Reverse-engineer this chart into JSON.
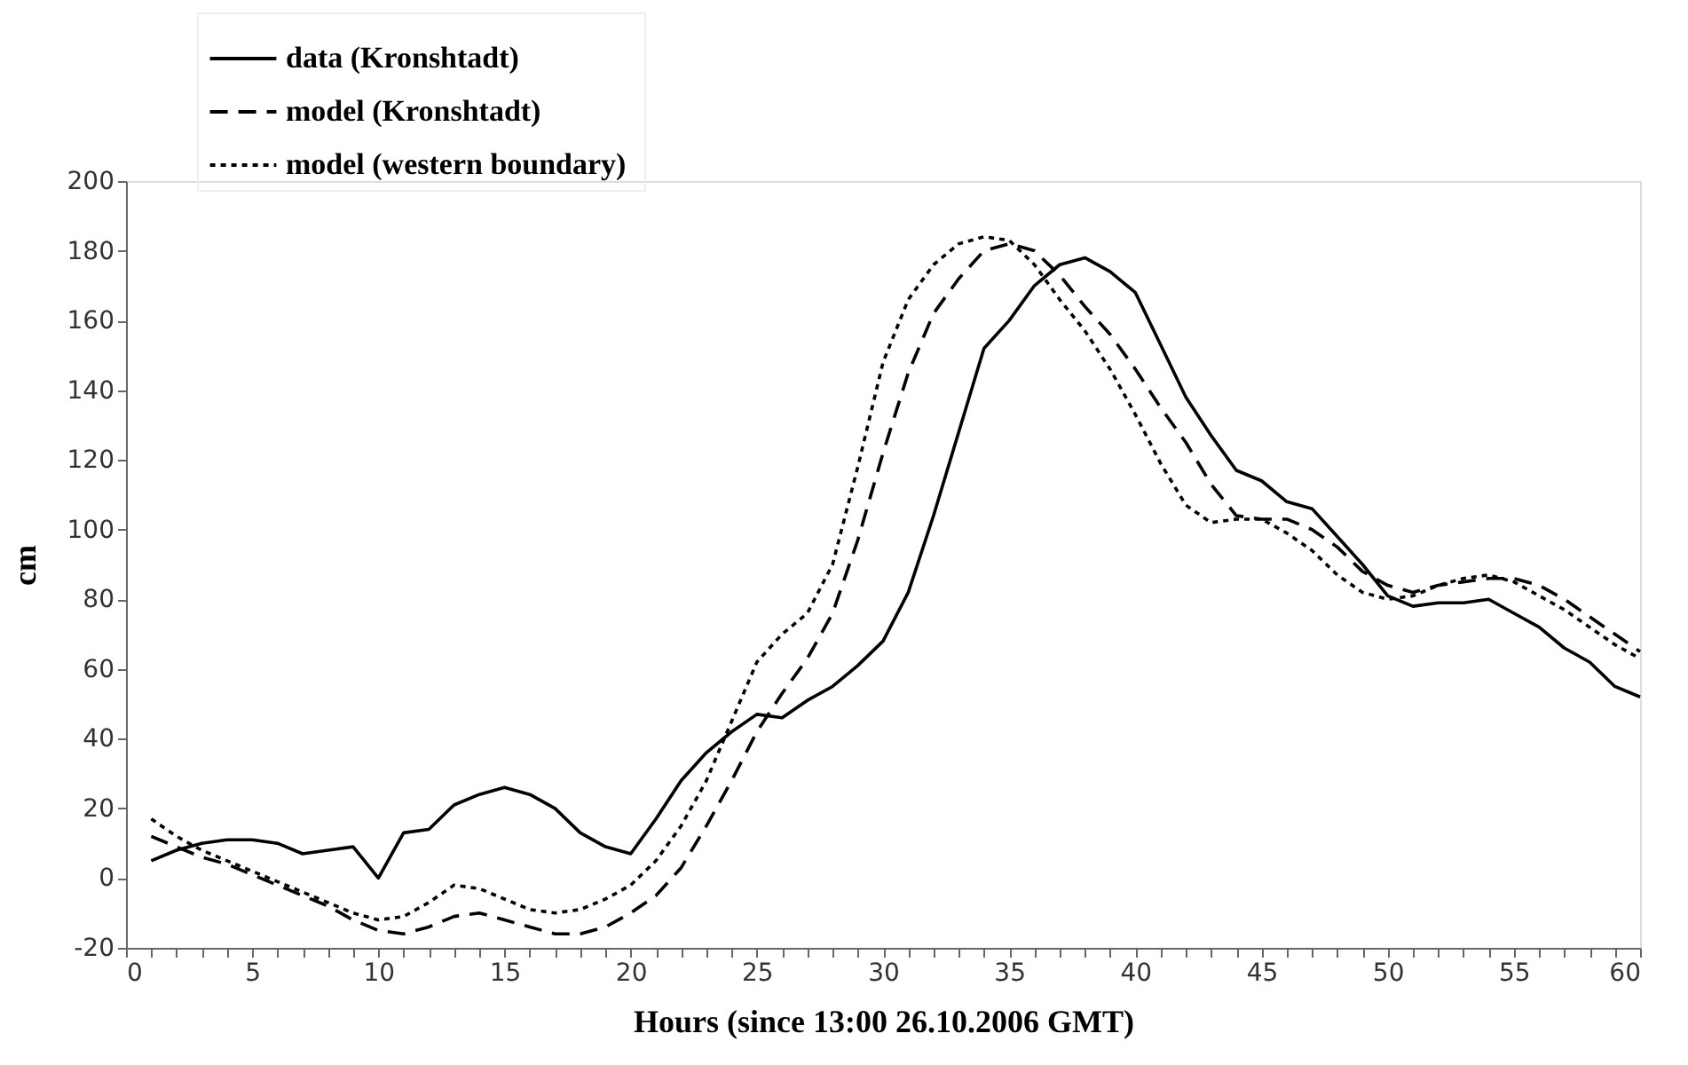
{
  "chart_data": {
    "type": "line",
    "xlabel": "Hours (since 13:00 26.10.2006 GMT)",
    "ylabel": "cm",
    "x": [
      1,
      2,
      3,
      4,
      5,
      6,
      7,
      8,
      9,
      10,
      11,
      12,
      13,
      14,
      15,
      16,
      17,
      18,
      19,
      20,
      21,
      22,
      23,
      24,
      25,
      26,
      27,
      28,
      29,
      30,
      31,
      32,
      33,
      34,
      35,
      36,
      37,
      38,
      39,
      40,
      41,
      42,
      43,
      44,
      45,
      46,
      47,
      48,
      49,
      50,
      51,
      52,
      53,
      54,
      55,
      56,
      57,
      58,
      59,
      60
    ],
    "series": [
      {
        "name": "data  (Kronshtadt)",
        "color": "#000000",
        "line_style": "solid",
        "values": [
          5,
          8,
          10,
          11,
          11,
          10,
          7,
          8,
          9,
          0,
          13,
          14,
          21,
          24,
          26,
          24,
          20,
          13,
          9,
          7,
          17,
          28,
          36,
          42,
          47,
          46,
          51,
          55,
          61,
          68,
          82,
          104,
          128,
          152,
          160,
          170,
          176,
          178,
          174,
          168,
          153,
          138,
          127,
          117,
          114,
          108,
          106,
          98,
          90,
          81,
          78,
          79,
          79,
          80,
          76,
          72,
          66,
          62,
          55,
          52
        ]
      },
      {
        "name": "model  (Kronshtadt)",
        "color": "#000000",
        "line_style": "dashed",
        "values": [
          12,
          9,
          6,
          4,
          1,
          -2,
          -5,
          -8,
          -12,
          -15,
          -16,
          -14,
          -11,
          -10,
          -12,
          -14,
          -16,
          -16,
          -14,
          -10,
          -5,
          3,
          15,
          28,
          42,
          53,
          63,
          76,
          97,
          122,
          145,
          162,
          172,
          180,
          182,
          180,
          173,
          164,
          156,
          146,
          135,
          125,
          113,
          104,
          103,
          103,
          100,
          95,
          88,
          84,
          82,
          84,
          85,
          86,
          86,
          84,
          80,
          75,
          70,
          65
        ]
      },
      {
        "name": "model  (western boundary)",
        "color": "#000000",
        "line_style": "dotted",
        "values": [
          17,
          12,
          8,
          5,
          2,
          -1,
          -4,
          -7,
          -10,
          -12,
          -11,
          -7,
          -2,
          -3,
          -6,
          -9,
          -10,
          -9,
          -6,
          -2,
          5,
          15,
          28,
          45,
          62,
          70,
          76,
          90,
          118,
          148,
          166,
          176,
          182,
          184,
          183,
          176,
          166,
          157,
          146,
          133,
          119,
          107,
          102,
          103,
          103,
          99,
          94,
          87,
          82,
          80,
          81,
          84,
          86,
          87,
          85,
          81,
          77,
          72,
          67,
          63
        ]
      }
    ],
    "xlim": [
      0,
      60
    ],
    "xticks": [
      0,
      {
        "value": 1,
        "label": null
      },
      {
        "value": 2,
        "label": null
      },
      {
        "value": 3,
        "label": null
      },
      {
        "value": 4,
        "label": null
      },
      5,
      {
        "value": 6,
        "label": null
      },
      {
        "value": 7,
        "label": null
      },
      {
        "value": 8,
        "label": null
      },
      {
        "value": 9,
        "label": null
      },
      10,
      {
        "value": 11,
        "label": null
      },
      {
        "value": 12,
        "label": null
      },
      {
        "value": 13,
        "label": null
      },
      {
        "value": 14,
        "label": null
      },
      15,
      {
        "value": 16,
        "label": null
      },
      {
        "value": 17,
        "label": null
      },
      {
        "value": 18,
        "label": null
      },
      {
        "value": 19,
        "label": null
      },
      20,
      {
        "value": 21,
        "label": null
      },
      {
        "value": 22,
        "label": null
      },
      {
        "value": 23,
        "label": null
      },
      {
        "value": 24,
        "label": null
      },
      25,
      {
        "value": 26,
        "label": null
      },
      {
        "value": 27,
        "label": null
      },
      {
        "value": 28,
        "label": null
      },
      {
        "value": 29,
        "label": null
      },
      30,
      {
        "value": 31,
        "label": null
      },
      {
        "value": 32,
        "label": null
      },
      {
        "value": 33,
        "label": null
      },
      {
        "value": 34,
        "label": null
      },
      35,
      {
        "value": 36,
        "label": null
      },
      {
        "value": 37,
        "label": null
      },
      {
        "value": 38,
        "label": null
      },
      {
        "value": 39,
        "label": null
      },
      40,
      {
        "value": 41,
        "label": null
      },
      {
        "value": 42,
        "label": null
      },
      {
        "value": 43,
        "label": null
      },
      {
        "value": 44,
        "label": null
      },
      45,
      {
        "value": 46,
        "label": null
      },
      {
        "value": 47,
        "label": null
      },
      {
        "value": 48,
        "label": null
      },
      {
        "value": 49,
        "label": null
      },
      50,
      {
        "value": 51,
        "label": null
      },
      {
        "value": 52,
        "label": null
      },
      {
        "value": 53,
        "label": null
      },
      {
        "value": 54,
        "label": null
      },
      55,
      {
        "value": 56,
        "label": null
      },
      {
        "value": 57,
        "label": null
      },
      {
        "value": 58,
        "label": null
      },
      {
        "value": 59,
        "label": null
      },
      60
    ],
    "ylim": [
      -20,
      200
    ],
    "yticks": [
      -20,
      0,
      20,
      40,
      60,
      80,
      100,
      120,
      140,
      160,
      180,
      200
    ],
    "grid": false,
    "legend": "top left",
    "marker": "none"
  }
}
